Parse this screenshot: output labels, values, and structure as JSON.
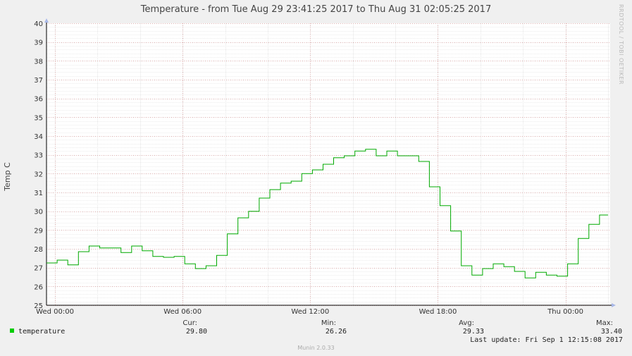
{
  "title": "Temperature - from Tue Aug 29 23:41:25 2017 to Thu Aug 31 02:05:25 2017",
  "side_credit": "RRDTOOL / TOBI OETIKER",
  "footer": "Munin 2.0.33",
  "legend": {
    "series_name": "temperature",
    "headers": {
      "cur": "Cur:",
      "min": "Min:",
      "avg": "Avg:",
      "max": "Max:"
    },
    "values": {
      "cur": "29.80",
      "min": "26.26",
      "avg": "29.33",
      "max": "33.40"
    },
    "last_update": "Last update:  Fri Sep  1 12:15:08 2017"
  },
  "chart_data": {
    "type": "line",
    "title": "Temperature - from Tue Aug 29 23:41:25 2017 to Thu Aug 31 02:05:25 2017",
    "ylabel": "Temp C",
    "xlabel": "",
    "x_unit": "hours since Wed 00:00",
    "ylim": [
      25,
      40
    ],
    "xlim": [
      -0.4,
      26.1
    ],
    "grid": true,
    "line_color": "#00aa00",
    "y_ticks": [
      25,
      26,
      27,
      28,
      29,
      30,
      31,
      32,
      33,
      34,
      35,
      36,
      37,
      38,
      39,
      40
    ],
    "x_ticks": [
      {
        "x": 0,
        "label": "Wed 00:00"
      },
      {
        "x": 6,
        "label": "Wed 06:00"
      },
      {
        "x": 12,
        "label": "Wed 12:00"
      },
      {
        "x": 18,
        "label": "Wed 18:00"
      },
      {
        "x": 24,
        "label": "Thu 00:00"
      }
    ],
    "series": [
      {
        "name": "temperature",
        "step": true,
        "x": [
          -0.4,
          0.1,
          0.6,
          1.1,
          1.6,
          2.1,
          3.1,
          3.6,
          4.1,
          4.6,
          5.1,
          5.6,
          6.1,
          6.6,
          7.1,
          7.6,
          8.1,
          8.6,
          9.1,
          9.6,
          10.1,
          10.6,
          11.1,
          11.6,
          12.1,
          12.6,
          13.1,
          13.6,
          14.1,
          14.6,
          15.1,
          15.6,
          16.1,
          17.1,
          17.6,
          18.1,
          18.6,
          19.1,
          19.6,
          20.1,
          20.6,
          21.1,
          21.6,
          22.1,
          22.6,
          23.1,
          23.6,
          24.1,
          24.6,
          25.1,
          25.6,
          26.0
        ],
        "y": [
          27.25,
          27.4,
          27.15,
          27.85,
          28.15,
          28.05,
          27.8,
          28.15,
          27.9,
          27.6,
          27.55,
          27.6,
          27.2,
          26.95,
          27.1,
          27.65,
          28.8,
          29.65,
          30.0,
          30.7,
          31.15,
          31.5,
          31.6,
          32.0,
          32.2,
          32.5,
          32.85,
          32.95,
          33.2,
          33.3,
          32.95,
          33.2,
          32.95,
          32.65,
          31.3,
          30.3,
          28.95,
          27.1,
          26.6,
          26.95,
          27.2,
          27.05,
          26.8,
          26.45,
          26.75,
          26.6,
          26.55,
          27.2,
          28.55,
          29.3,
          29.8,
          29.8
        ]
      }
    ]
  }
}
